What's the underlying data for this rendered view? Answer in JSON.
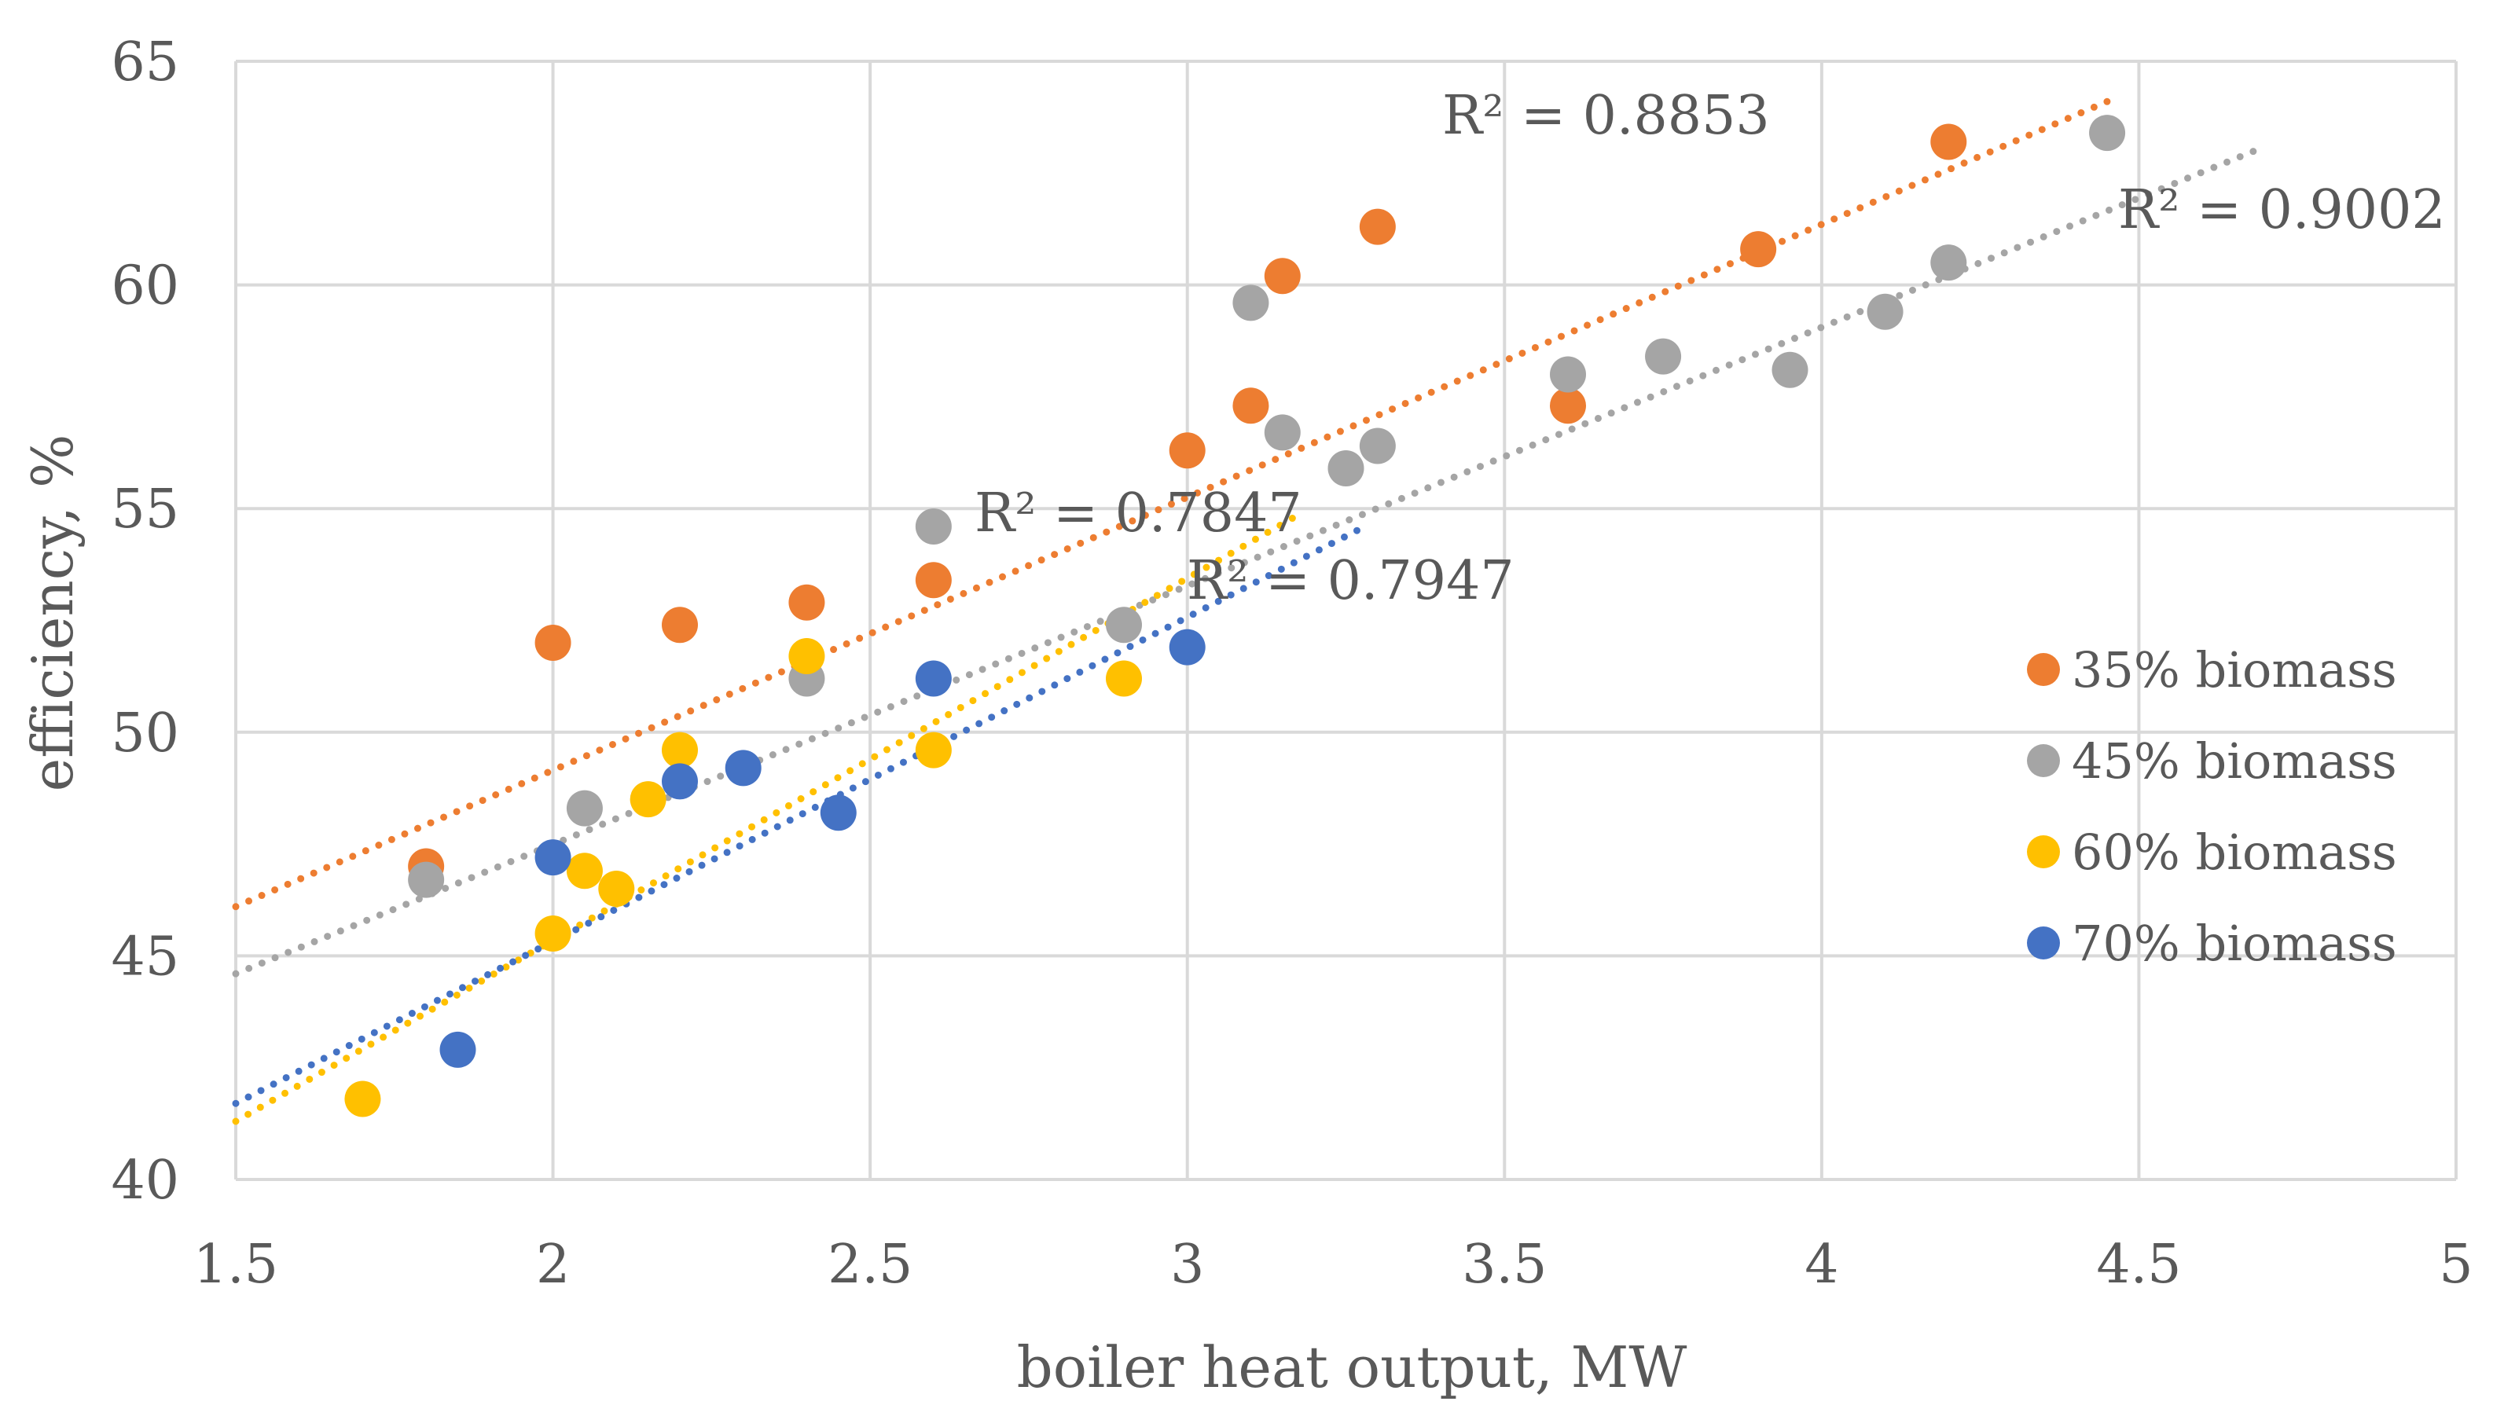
{
  "chart_data": {
    "type": "scatter",
    "xlabel": "boiler heat output, MW",
    "ylabel": "efficiency, %",
    "xlim": [
      1.5,
      5
    ],
    "ylim": [
      40,
      65
    ],
    "xticks": [
      1.5,
      2,
      2.5,
      3,
      3.5,
      4,
      4.5,
      5
    ],
    "yticks": [
      40,
      45,
      50,
      55,
      60,
      65
    ],
    "xtick_labels": [
      "1.5",
      "2",
      "2.5",
      "3",
      "3.5",
      "4",
      "4.5",
      "5"
    ],
    "ytick_labels": [
      "40",
      "45",
      "50",
      "55",
      "60",
      "65"
    ],
    "grid": true,
    "legend_position": "right",
    "series": [
      {
        "name": "35% biomass",
        "color": "#ED7D31",
        "points": [
          [
            1.8,
            47.0
          ],
          [
            2.0,
            52.0
          ],
          [
            2.2,
            52.4
          ],
          [
            2.4,
            52.9
          ],
          [
            2.6,
            53.4
          ],
          [
            3.0,
            56.3
          ],
          [
            3.1,
            57.3
          ],
          [
            3.15,
            60.2
          ],
          [
            3.3,
            61.3
          ],
          [
            3.6,
            57.3
          ],
          [
            3.9,
            60.8
          ],
          [
            4.2,
            63.2
          ]
        ],
        "trendline": {
          "x": [
            1.5,
            4.45
          ],
          "y": [
            46.1,
            64.1
          ]
        },
        "r2": "R² = 0.8853"
      },
      {
        "name": "45% biomass",
        "color": "#A5A5A5",
        "points": [
          [
            1.8,
            46.7
          ],
          [
            2.05,
            48.3
          ],
          [
            2.4,
            51.2
          ],
          [
            2.6,
            54.6
          ],
          [
            2.9,
            52.4
          ],
          [
            3.1,
            59.6
          ],
          [
            3.15,
            56.7
          ],
          [
            3.25,
            55.9
          ],
          [
            3.3,
            56.4
          ],
          [
            3.6,
            58.0
          ],
          [
            3.75,
            58.4
          ],
          [
            3.95,
            58.1
          ],
          [
            4.1,
            59.4
          ],
          [
            4.2,
            60.5
          ],
          [
            4.45,
            63.4
          ]
        ],
        "trendline": {
          "x": [
            1.5,
            4.7
          ],
          "y": [
            44.6,
            63.1
          ]
        },
        "r2": "R² = 0.9002"
      },
      {
        "name": "60% biomass",
        "color": "#FFC000",
        "points": [
          [
            1.7,
            41.8
          ],
          [
            2.0,
            45.5
          ],
          [
            2.05,
            46.9
          ],
          [
            2.1,
            46.5
          ],
          [
            2.15,
            48.5
          ],
          [
            2.2,
            49.6
          ],
          [
            2.4,
            51.7
          ],
          [
            2.6,
            49.6
          ],
          [
            2.9,
            51.2
          ]
        ],
        "trendline": {
          "x": [
            1.5,
            3.18
          ],
          "y": [
            41.3,
            54.9
          ]
        },
        "r2": "R² = 0.7847"
      },
      {
        "name": "70% biomass",
        "color": "#4472C4",
        "points": [
          [
            1.85,
            42.9
          ],
          [
            2.0,
            47.2
          ],
          [
            2.2,
            48.9
          ],
          [
            2.3,
            49.2
          ],
          [
            2.45,
            48.2
          ],
          [
            2.6,
            51.2
          ],
          [
            3.0,
            51.9
          ]
        ],
        "trendline": {
          "x": [
            1.5,
            3.28
          ],
          "y": [
            41.7,
            54.6
          ]
        },
        "r2": "R² = 0.7947"
      }
    ]
  }
}
